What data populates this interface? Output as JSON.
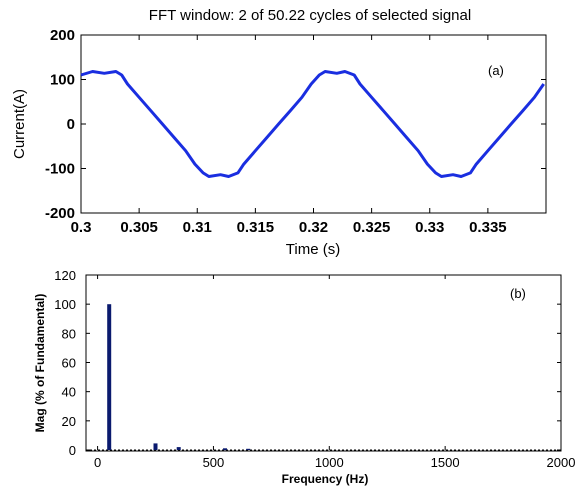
{
  "chart_data": [
    {
      "type": "line",
      "title": "FFT window: 2 of 50.22 cycles of selected signal",
      "xlabel": "Time (s)",
      "ylabel": "Current(A)",
      "annotation": "(a)",
      "xlim": [
        0.3,
        0.34
      ],
      "ylim": [
        -200,
        200
      ],
      "xticks": [
        "0.3",
        "0.305",
        "0.31",
        "0.315",
        "0.32",
        "0.325",
        "0.33",
        "0.335"
      ],
      "yticks": [
        "200",
        "100",
        "0",
        "-100",
        "-200"
      ],
      "grid": false,
      "color": "#1a2ee0",
      "series": [
        {
          "x": [
            0.3,
            0.301,
            0.302,
            0.303,
            0.3035,
            0.304,
            0.305,
            0.306,
            0.307,
            0.308,
            0.309,
            0.3098,
            0.3105,
            0.311,
            0.312,
            0.3127,
            0.3135,
            0.314,
            0.315,
            0.316,
            0.317,
            0.318,
            0.319,
            0.3198,
            0.3205,
            0.321,
            0.322,
            0.3227,
            0.3235,
            0.324,
            0.325,
            0.326,
            0.327,
            0.328,
            0.329,
            0.3298,
            0.3305,
            0.331,
            0.332,
            0.3327,
            0.3335,
            0.334,
            0.335,
            0.336,
            0.337,
            0.338,
            0.339,
            0.3398
          ],
          "y": [
            110,
            118,
            114,
            118,
            110,
            90,
            60,
            30,
            0,
            -30,
            -60,
            -90,
            -110,
            -118,
            -114,
            -118,
            -110,
            -90,
            -60,
            -30,
            0,
            30,
            60,
            90,
            110,
            118,
            114,
            118,
            110,
            90,
            60,
            30,
            0,
            -30,
            -60,
            -90,
            -110,
            -118,
            -114,
            -118,
            -110,
            -90,
            -60,
            -30,
            0,
            30,
            60,
            90
          ]
        }
      ]
    },
    {
      "type": "bar",
      "xlabel": "Frequency (Hz)",
      "ylabel": "Mag (% of Fundamental)",
      "annotation": "(b)",
      "xlim": [
        -50,
        2000
      ],
      "ylim": [
        0,
        120
      ],
      "xticks": [
        "0",
        "500",
        "1000",
        "1500",
        "2000"
      ],
      "yticks": [
        "120",
        "100",
        "80",
        "60",
        "40",
        "20",
        "0"
      ],
      "grid": false,
      "color": "#0a1a6e",
      "x": [
        50,
        250,
        350,
        550,
        650
      ],
      "values": [
        100,
        4.5,
        2,
        1.2,
        0.8
      ]
    }
  ]
}
